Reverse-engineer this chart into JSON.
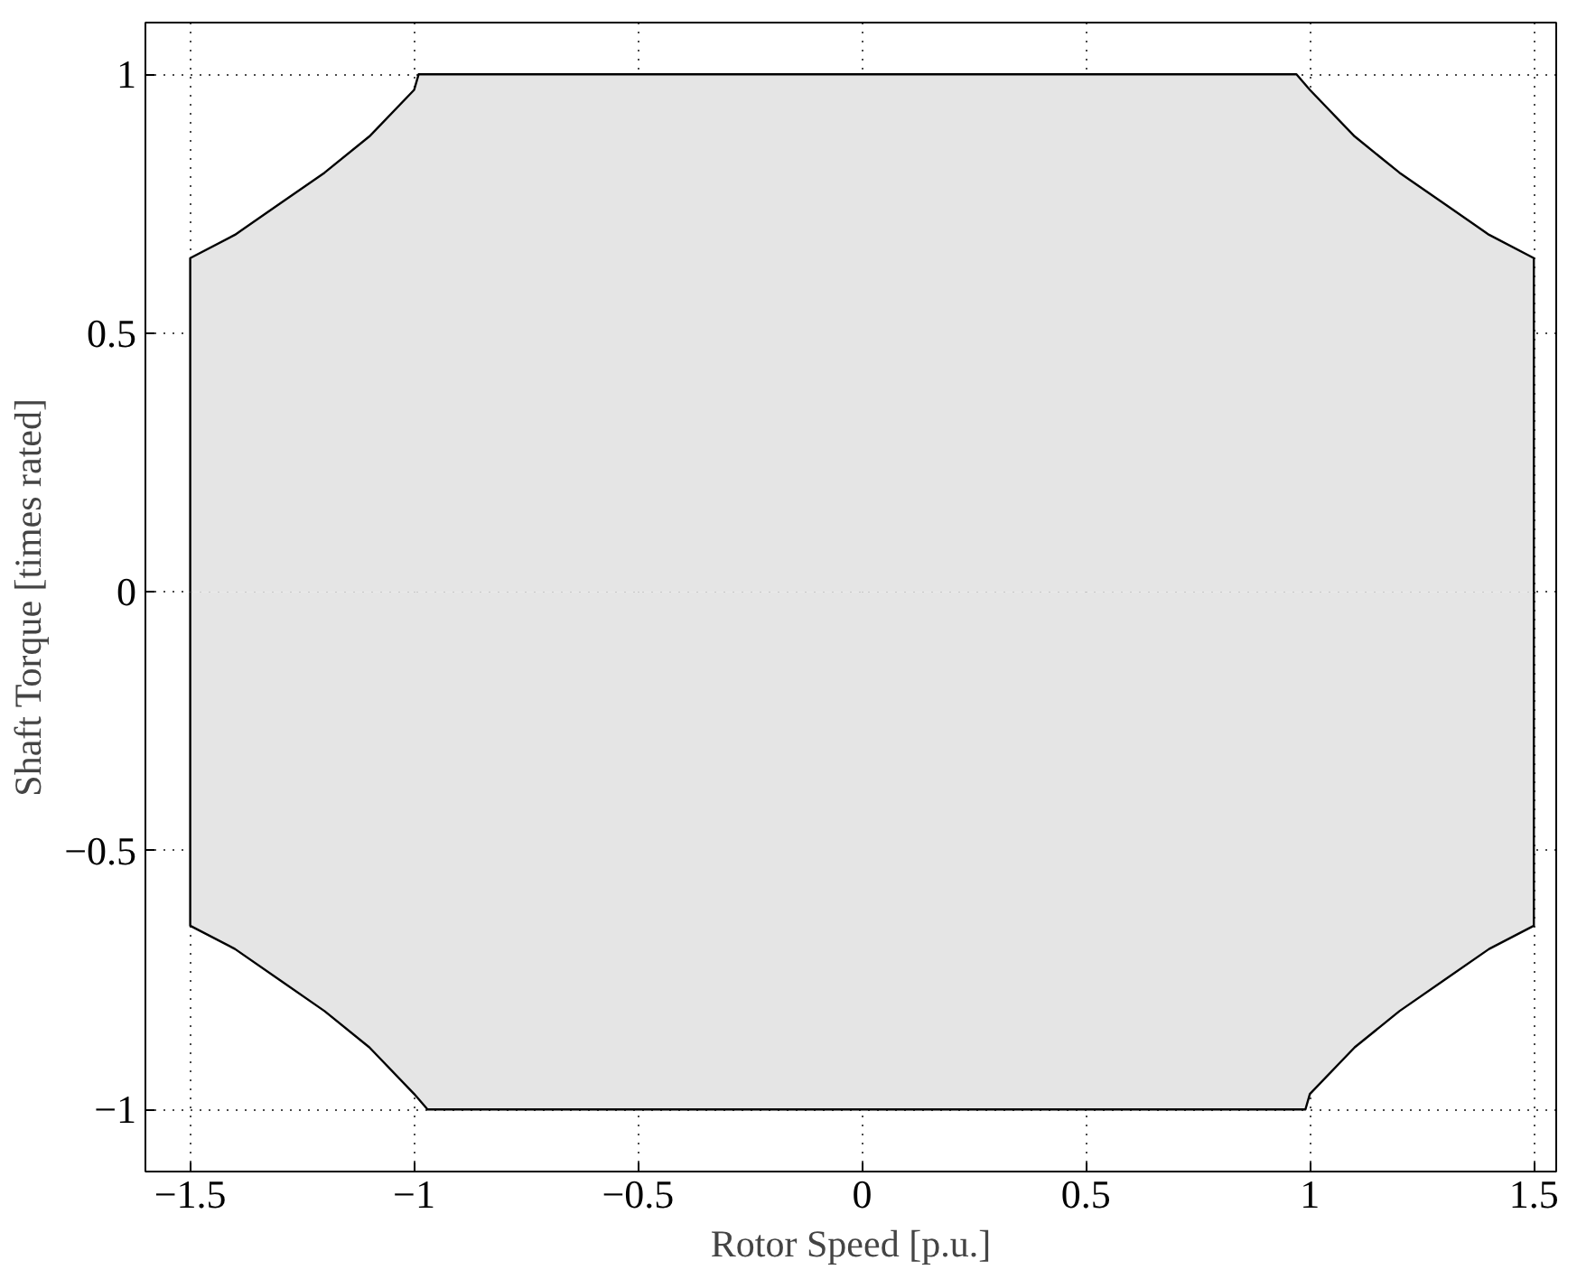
{
  "chart_data": {
    "type": "area",
    "xlabel": "Rotor Speed [p.u.]",
    "ylabel": "Shaft Torque [times rated]",
    "x": [
      -1.5,
      -1.4,
      -1.3,
      -1.2,
      -1.1,
      -1.0,
      -0.99,
      -0.97,
      0.97,
      0.99,
      1.0,
      1.1,
      1.2,
      1.3,
      1.4,
      1.5
    ],
    "series": [
      {
        "color": "#e5e5e5",
        "values": [
          0.645,
          0.69,
          0.75,
          0.81,
          0.88,
          0.97,
          1,
          1,
          1,
          0.98,
          0.97,
          0.88,
          0.81,
          0.75,
          0.69,
          0.645
        ]
      },
      {
        "color": "#e5e5e5",
        "values": [
          -0.645,
          -0.69,
          -0.75,
          -0.81,
          -0.88,
          -0.97,
          -0.98,
          -1,
          -1,
          -1,
          -0.97,
          -0.88,
          -0.81,
          -0.75,
          -0.69,
          -0.645
        ]
      }
    ],
    "xlim": [
      -1.6,
      1.55
    ],
    "ylim": [
      -1.12,
      1.1
    ],
    "xticks": [
      {
        "value": -1.5,
        "label": "−1.5"
      },
      {
        "value": -1,
        "label": "−1"
      },
      {
        "value": -0.5,
        "label": "−0.5"
      },
      0,
      0.5,
      1,
      1.5
    ],
    "yticks": [
      {
        "value": -1,
        "label": "−1"
      },
      {
        "value": -0.5,
        "label": "−0.5"
      },
      0,
      0.5,
      1
    ],
    "grid": true
  }
}
